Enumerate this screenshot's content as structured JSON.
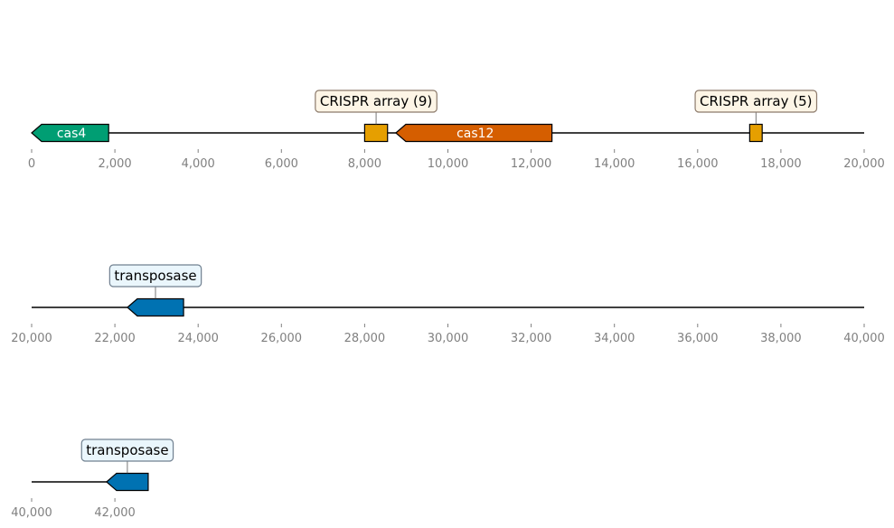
{
  "colors": {
    "backbone": "#000000",
    "tick_label": "#808080",
    "cas4": "#009E73",
    "cas12": "#D55E00",
    "crispr": "#E69F00",
    "transposase": "#0072B2",
    "crispr_callout_fill": "#FDF5E6",
    "crispr_callout_border": "#8C7A6B",
    "transposase_callout_fill": "#EAF6FC",
    "transposase_callout_border": "#708090"
  },
  "tracks": [
    {
      "range": [
        0,
        20000
      ],
      "ticks": [
        {
          "value": 0,
          "label": "0"
        },
        {
          "value": 2000,
          "label": "2,000"
        },
        {
          "value": 4000,
          "label": "4,000"
        },
        {
          "value": 6000,
          "label": "6,000"
        },
        {
          "value": 8000,
          "label": "8,000"
        },
        {
          "value": 10000,
          "label": "10,000"
        },
        {
          "value": 12000,
          "label": "12,000"
        },
        {
          "value": 14000,
          "label": "14,000"
        },
        {
          "value": 16000,
          "label": "16,000"
        },
        {
          "value": 18000,
          "label": "18,000"
        },
        {
          "value": 20000,
          "label": "20,000"
        }
      ],
      "features": [
        {
          "name": "cas4-gene",
          "label": "cas4",
          "start": 0,
          "end": 1850,
          "strand": -1,
          "color_key": "cas4",
          "label_style": "inside"
        },
        {
          "name": "crispr-array-1",
          "label": "CRISPR array (9)",
          "start": 8000,
          "end": 8550,
          "strand": 0,
          "color_key": "crispr",
          "label_style": "callout",
          "callout": "crispr"
        },
        {
          "name": "cas12-gene",
          "label": "cas12",
          "start": 8750,
          "end": 12500,
          "strand": -1,
          "color_key": "cas12",
          "label_style": "inside"
        },
        {
          "name": "crispr-array-2",
          "label": "CRISPR array (5)",
          "start": 17250,
          "end": 17550,
          "strand": 0,
          "color_key": "crispr",
          "label_style": "callout",
          "callout": "crispr"
        }
      ]
    },
    {
      "range": [
        20000,
        40000
      ],
      "ticks": [
        {
          "value": 20000,
          "label": "20,000"
        },
        {
          "value": 22000,
          "label": "22,000"
        },
        {
          "value": 24000,
          "label": "24,000"
        },
        {
          "value": 26000,
          "label": "26,000"
        },
        {
          "value": 28000,
          "label": "28,000"
        },
        {
          "value": 30000,
          "label": "30,000"
        },
        {
          "value": 32000,
          "label": "32,000"
        },
        {
          "value": 34000,
          "label": "34,000"
        },
        {
          "value": 36000,
          "label": "36,000"
        },
        {
          "value": 38000,
          "label": "38,000"
        },
        {
          "value": 40000,
          "label": "40,000"
        }
      ],
      "features": [
        {
          "name": "transposase-gene-1",
          "label": "transposase",
          "start": 22300,
          "end": 23650,
          "strand": -1,
          "color_key": "transposase",
          "label_style": "callout",
          "callout": "transposase"
        }
      ]
    },
    {
      "range": [
        40000,
        60000
      ],
      "line_end": 41850,
      "ticks": [
        {
          "value": 40000,
          "label": "40,000"
        },
        {
          "value": 42000,
          "label": "42,000"
        }
      ],
      "features": [
        {
          "name": "transposase-gene-2",
          "label": "transposase",
          "start": 41800,
          "end": 42800,
          "strand": -1,
          "color_key": "transposase",
          "label_style": "callout",
          "callout": "transposase"
        }
      ]
    }
  ]
}
